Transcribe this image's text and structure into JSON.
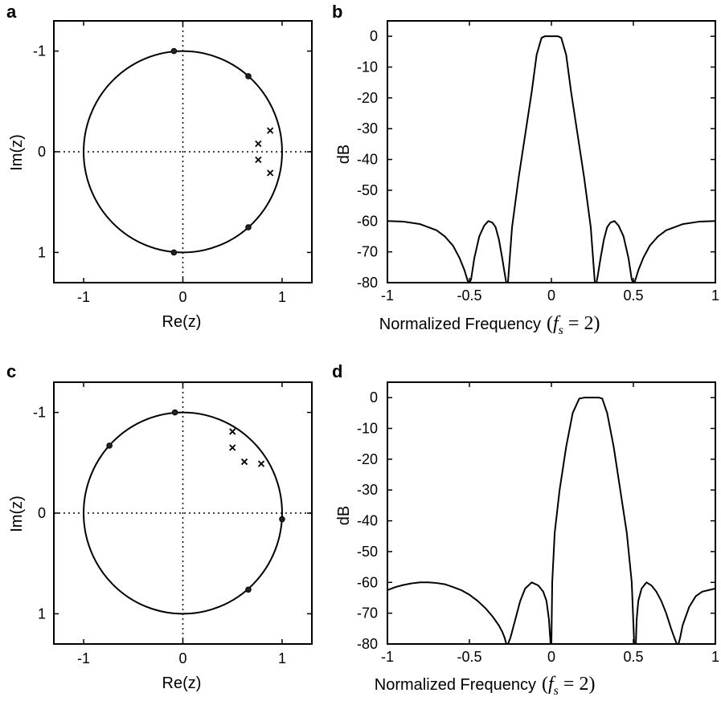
{
  "chart_data": [
    {
      "panel": "a",
      "type": "scatter",
      "xlabel": "Re(z)",
      "ylabel": "Im(z)",
      "xlim": [
        -1.3,
        1.3
      ],
      "ylim": [
        1.3,
        -1.3
      ],
      "y_axis_inverted": true,
      "x_ticks": [
        "-1",
        "0",
        "1"
      ],
      "y_ticks": [
        "-1",
        "0",
        "1"
      ],
      "grid": "dotted lines through origin",
      "unit_circle": true,
      "zeros": [
        [
          -0.09,
          -1.0
        ],
        [
          0.66,
          -0.75
        ],
        [
          0.66,
          0.75
        ],
        [
          -0.09,
          1.0
        ]
      ],
      "poles": [
        [
          0.88,
          -0.21
        ],
        [
          0.76,
          -0.08
        ],
        [
          0.76,
          0.08
        ],
        [
          0.88,
          0.21
        ]
      ]
    },
    {
      "panel": "b",
      "type": "line",
      "xlabel": "Normalized Frequency",
      "xlabel_math": "(f_s = 2)",
      "ylabel": "dB",
      "xlim": [
        -1,
        1
      ],
      "ylim": [
        -80,
        5
      ],
      "x_ticks": [
        "-1",
        "-0.5",
        "0",
        "0.5",
        "1"
      ],
      "y_ticks": [
        "0",
        "-10",
        "-20",
        "-30",
        "-40",
        "-50",
        "-60",
        "-70",
        "-80"
      ],
      "x": [
        -1,
        -0.9,
        -0.8,
        -0.7,
        -0.65,
        -0.6,
        -0.56,
        -0.53,
        -0.51,
        -0.5,
        -0.49,
        -0.47,
        -0.44,
        -0.41,
        -0.385,
        -0.36,
        -0.34,
        -0.32,
        -0.3,
        -0.285,
        -0.275,
        -0.27,
        -0.265,
        -0.24,
        -0.2,
        -0.16,
        -0.12,
        -0.09,
        -0.06,
        -0.04,
        0.04,
        0.06,
        0.09,
        0.12,
        0.16,
        0.2,
        0.24,
        0.265,
        0.27,
        0.275,
        0.285,
        0.3,
        0.32,
        0.34,
        0.36,
        0.385,
        0.41,
        0.44,
        0.47,
        0.49,
        0.5,
        0.51,
        0.53,
        0.56,
        0.6,
        0.65,
        0.7,
        0.8,
        0.9,
        1
      ],
      "y": [
        -60,
        -60.2,
        -61,
        -63,
        -65,
        -68,
        -72,
        -76,
        -79.5,
        -80,
        -79,
        -72,
        -65,
        -61.5,
        -60,
        -60.5,
        -62,
        -66,
        -72,
        -77,
        -80,
        -80,
        -80,
        -62,
        -46,
        -32,
        -18,
        -6,
        -0.5,
        0,
        0,
        -0.5,
        -6,
        -18,
        -32,
        -46,
        -62,
        -80,
        -80,
        -80,
        -77,
        -72,
        -66,
        -62,
        -60.5,
        -60,
        -61.5,
        -65,
        -72,
        -79,
        -80,
        -79.5,
        -76,
        -72,
        -68,
        -65,
        -63,
        -61,
        -60.2,
        -60
      ]
    },
    {
      "panel": "c",
      "type": "scatter",
      "xlabel": "Re(z)",
      "ylabel": "Im(z)",
      "xlim": [
        -1.3,
        1.3
      ],
      "ylim": [
        1.3,
        -1.3
      ],
      "y_axis_inverted": true,
      "x_ticks": [
        "-1",
        "0",
        "1"
      ],
      "y_ticks": [
        "-1",
        "0",
        "1"
      ],
      "grid": "dotted lines through origin",
      "unit_circle": true,
      "zeros": [
        [
          -0.08,
          -1.0
        ],
        [
          -0.74,
          -0.67
        ],
        [
          1.0,
          0.06
        ],
        [
          0.66,
          0.76
        ]
      ],
      "poles": [
        [
          0.5,
          -0.81
        ],
        [
          0.5,
          -0.65
        ],
        [
          0.62,
          -0.51
        ],
        [
          0.79,
          -0.49
        ]
      ]
    },
    {
      "panel": "d",
      "type": "line",
      "xlabel": "Normalized Frequency",
      "xlabel_math": "(f_s = 2)",
      "ylabel": "dB",
      "xlim": [
        -1,
        1
      ],
      "ylim": [
        -80,
        5
      ],
      "x_ticks": [
        "-1",
        "-0.5",
        "0",
        "0.5",
        "1"
      ],
      "y_ticks": [
        "0",
        "-10",
        "-20",
        "-30",
        "-40",
        "-50",
        "-60",
        "-70",
        "-80"
      ],
      "x": [
        -1,
        -0.95,
        -0.9,
        -0.85,
        -0.8,
        -0.75,
        -0.7,
        -0.65,
        -0.6,
        -0.55,
        -0.5,
        -0.45,
        -0.4,
        -0.36,
        -0.32,
        -0.3,
        -0.285,
        -0.275,
        -0.265,
        -0.25,
        -0.22,
        -0.19,
        -0.16,
        -0.12,
        -0.08,
        -0.05,
        -0.03,
        -0.015,
        -0.005,
        0,
        0.005,
        0.02,
        0.05,
        0.09,
        0.13,
        0.17,
        0.2,
        0.22,
        0.29,
        0.31,
        0.34,
        0.38,
        0.42,
        0.46,
        0.49,
        0.505,
        0.51,
        0.515,
        0.52,
        0.53,
        0.55,
        0.58,
        0.61,
        0.64,
        0.67,
        0.7,
        0.73,
        0.75,
        0.765,
        0.775,
        0.785,
        0.8,
        0.84,
        0.88,
        0.92,
        0.96,
        1
      ],
      "y": [
        -62.5,
        -61.5,
        -60.8,
        -60.3,
        -60,
        -60,
        -60.2,
        -60.6,
        -61.5,
        -62.5,
        -64,
        -66,
        -68.5,
        -71,
        -74,
        -76,
        -78,
        -80,
        -80,
        -78,
        -72,
        -66,
        -62,
        -60,
        -61,
        -63,
        -66,
        -72,
        -80,
        -80,
        -60,
        -44,
        -30,
        -16,
        -5,
        -0.3,
        0,
        0,
        0,
        -0.3,
        -5,
        -16,
        -30,
        -44,
        -60,
        -80,
        -80,
        -80,
        -72,
        -66,
        -62,
        -60,
        -61,
        -63,
        -66,
        -70,
        -75,
        -78,
        -80,
        -80,
        -78,
        -74,
        -68,
        -64.5,
        -63,
        -62.5,
        -62
      ]
    }
  ],
  "panels": {
    "a": {
      "letter": "a",
      "xlabel": "Re(z)",
      "ylabel": "Im(z)"
    },
    "b": {
      "letter": "b",
      "xlabel": "Normalized Frequency",
      "ylabel": "dB"
    },
    "c": {
      "letter": "c",
      "xlabel": "Re(z)",
      "ylabel": "Im(z)"
    },
    "d": {
      "letter": "d",
      "xlabel": "Normalized Frequency",
      "ylabel": "dB"
    }
  },
  "math_label": {
    "open": "(",
    "f": "f",
    "sub": "s",
    "rest": " = 2)"
  }
}
